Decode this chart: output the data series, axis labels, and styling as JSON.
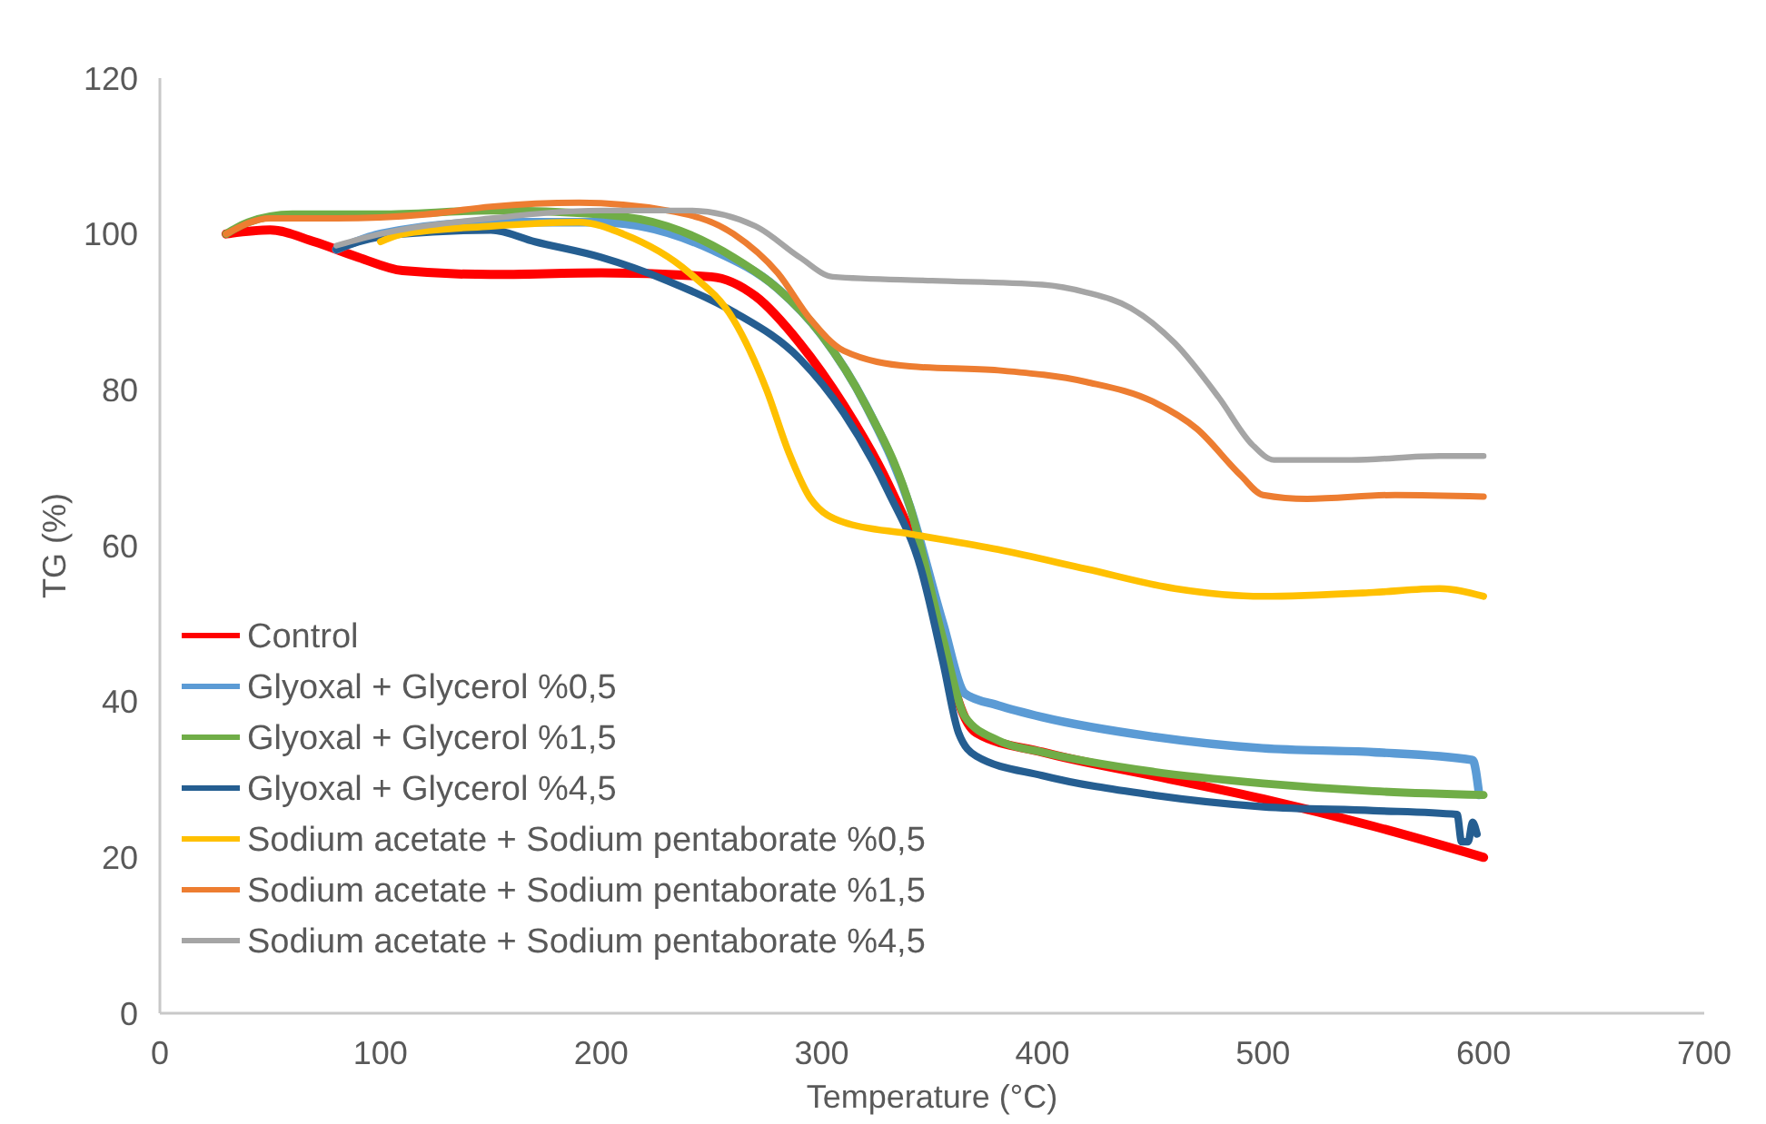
{
  "chart_data": {
    "type": "line",
    "xlabel": "Temperature  (°C)",
    "ylabel": "TG (%)",
    "xlim": [
      0,
      700
    ],
    "xticks": [
      0,
      100,
      200,
      300,
      400,
      500,
      600,
      700
    ],
    "ylim": [
      0,
      120
    ],
    "yticks": [
      0,
      20,
      40,
      60,
      80,
      100,
      120
    ],
    "grid": false,
    "legend": "bottom left",
    "marker": "none",
    "line_style": "solid",
    "series": [
      {
        "name": "Control",
        "color": "#ff0000",
        "x": [
          30,
          50,
          70,
          90,
          110,
          150,
          200,
          250,
          270,
          290,
          310,
          330,
          345,
          355,
          362,
          370,
          400,
          450,
          500,
          550,
          600
        ],
        "values": [
          100,
          100.5,
          99,
          97,
          95.3,
          94.8,
          95,
          94.5,
          92,
          86,
          78,
          68,
          58,
          48,
          40,
          36,
          33.5,
          30.5,
          27.5,
          24,
          20
        ]
      },
      {
        "name": "Glyoxal + Glycerol  %0,5",
        "color": "#5b9bd5",
        "x": [
          80,
          100,
          150,
          200,
          250,
          280,
          300,
          320,
          340,
          355,
          365,
          380,
          400,
          450,
          500,
          550,
          595,
          598
        ],
        "values": [
          98,
          100,
          101.5,
          101.5,
          98,
          93,
          87,
          78,
          65,
          50,
          41,
          39.5,
          38,
          35.5,
          34,
          33.5,
          32.5,
          28
        ]
      },
      {
        "name": "Glyoxal + Glycerol  %1,5",
        "color": "#70ad47",
        "x": [
          30,
          40,
          60,
          100,
          150,
          200,
          230,
          260,
          280,
          300,
          320,
          340,
          355,
          365,
          380,
          400,
          450,
          500,
          550,
          600
        ],
        "values": [
          100,
          101.5,
          102.5,
          102.5,
          103,
          102.5,
          101,
          97,
          93,
          87,
          78,
          65,
          48,
          38,
          35,
          33.5,
          31,
          29.5,
          28.5,
          28
        ]
      },
      {
        "name": "Glyoxal + Glycerol %4,5",
        "color": "#255e91",
        "x": [
          80,
          90,
          110,
          150,
          170,
          200,
          230,
          260,
          290,
          310,
          330,
          345,
          355,
          362,
          370,
          400,
          450,
          500,
          550,
          588,
          590,
          593,
          595,
          597
        ],
        "values": [
          98,
          99,
          100,
          100.5,
          99,
          97,
          94,
          90,
          84,
          77,
          67,
          57,
          45,
          36,
          33,
          30.5,
          28,
          26.5,
          26,
          25.5,
          22,
          22,
          24.5,
          23
        ]
      },
      {
        "name": "Sodium acetate + Sodium pentaborate %0,5",
        "color": "#ffc000",
        "x": [
          100,
          110,
          150,
          190,
          210,
          240,
          260,
          275,
          285,
          295,
          310,
          340,
          380,
          420,
          460,
          500,
          550,
          580,
          600
        ],
        "values": [
          99,
          100,
          101,
          101.5,
          100,
          95,
          89,
          80,
          72,
          66,
          63,
          61.5,
          59.5,
          57,
          54.5,
          53.5,
          54,
          54.5,
          53.5
        ]
      },
      {
        "name": "Sodium acetate + Sodium pentaborate %1,5",
        "color": "#ed7d31",
        "x": [
          30,
          50,
          80,
          120,
          150,
          190,
          230,
          260,
          280,
          295,
          310,
          340,
          380,
          420,
          450,
          470,
          490,
          500,
          520,
          560,
          600
        ],
        "values": [
          100,
          102,
          102,
          102.5,
          103.5,
          104,
          103,
          100,
          95,
          89,
          85,
          83,
          82.5,
          81,
          78.5,
          75,
          69,
          66.5,
          66,
          66.5,
          66.3
        ]
      },
      {
        "name": "Sodium acetate + Sodium pentaborate %4,5",
        "color": "#a5a5a5",
        "x": [
          80,
          100,
          150,
          200,
          240,
          270,
          290,
          305,
          350,
          400,
          420,
          440,
          460,
          480,
          495,
          505,
          540,
          580,
          600
        ],
        "values": [
          98.5,
          100,
          102,
          103,
          103,
          101,
          97,
          94.5,
          94,
          93.5,
          92.5,
          90.5,
          86,
          79,
          73,
          71,
          71,
          71.5,
          71.5
        ]
      }
    ]
  }
}
